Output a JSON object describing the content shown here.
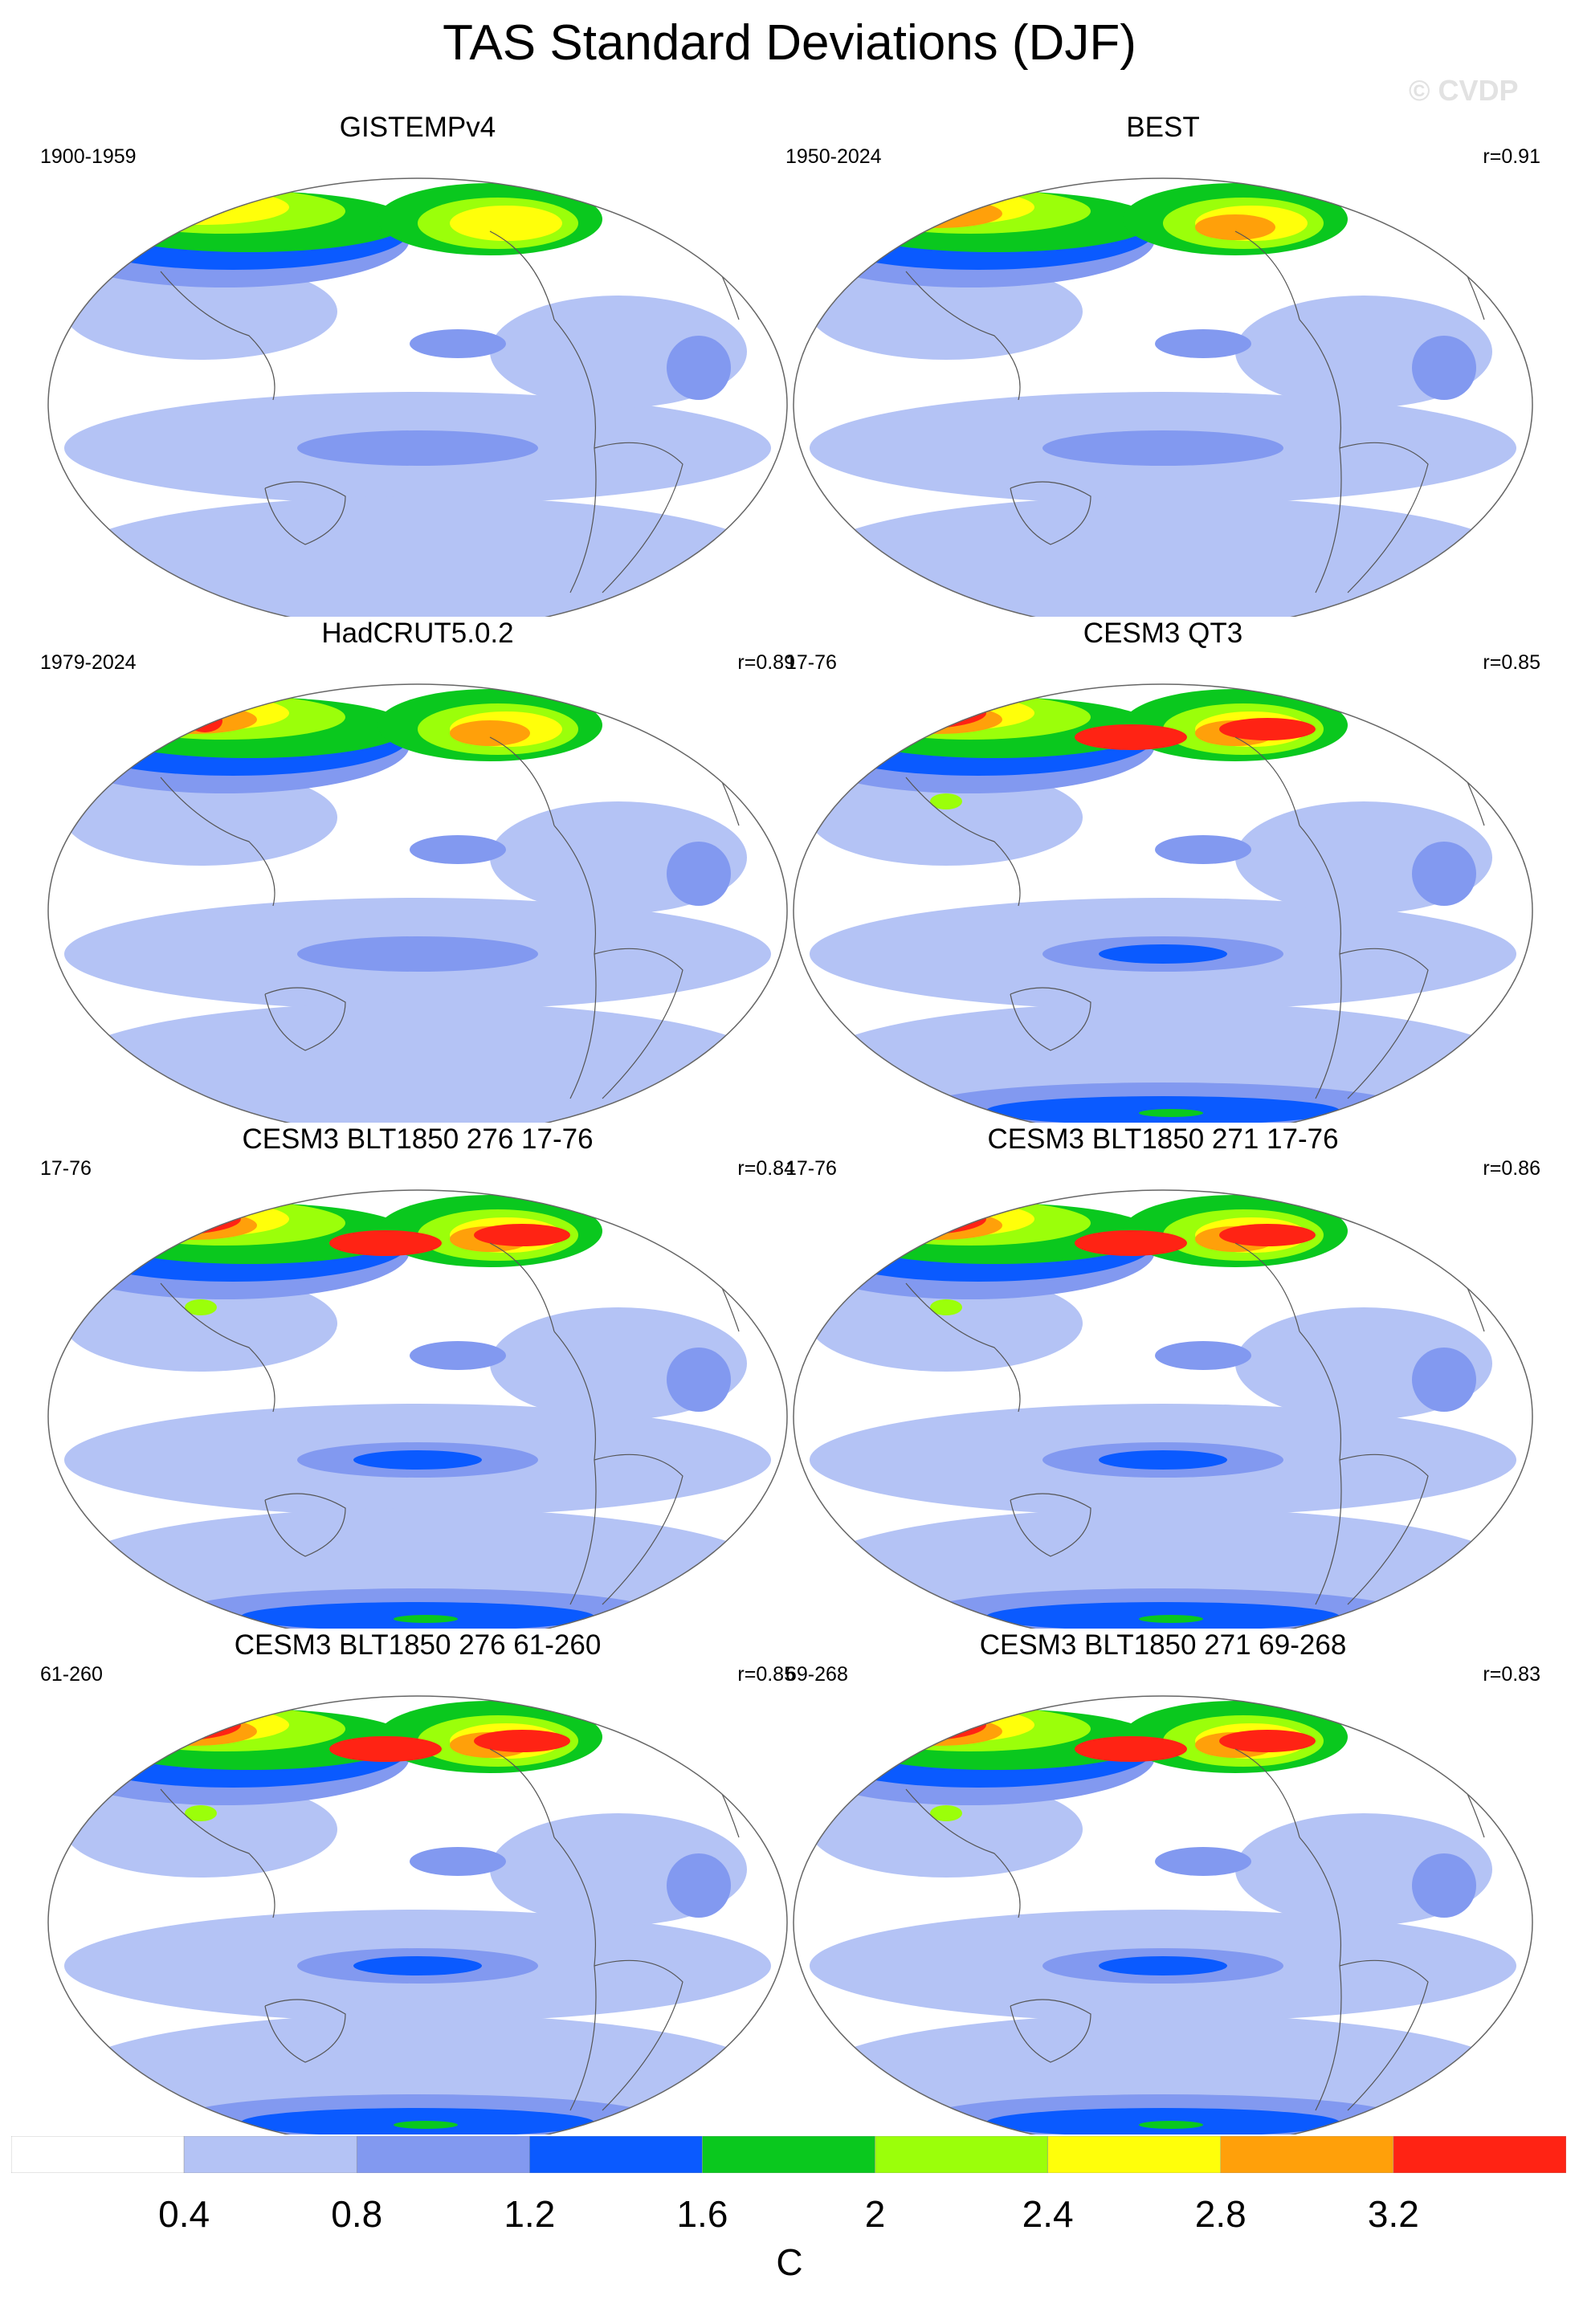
{
  "title": "TAS Standard Deviations (DJF)",
  "watermark": "© CVDP",
  "panels": [
    {
      "title": "GISTEMPv4",
      "period": "1900-1959",
      "corr": "",
      "style": 0
    },
    {
      "title": "BEST",
      "period": "1950-2024",
      "corr": "r=0.91",
      "style": 1
    },
    {
      "title": "HadCRUT5.0.2",
      "period": "1979-2024",
      "corr": "r=0.89",
      "style": 2
    },
    {
      "title": "CESM3 QT3",
      "period": "17-76",
      "corr": "r=0.85",
      "style": 3
    },
    {
      "title": "CESM3 BLT1850 276 17-76",
      "period": "17-76",
      "corr": "r=0.84",
      "style": 3
    },
    {
      "title": "CESM3 BLT1850 271 17-76",
      "period": "17-76",
      "corr": "r=0.86",
      "style": 3
    },
    {
      "title": "CESM3 BLT1850 276 61-260",
      "period": "61-260",
      "corr": "r=0.85",
      "style": 3
    },
    {
      "title": "CESM3 BLT1850 271 69-268",
      "period": "69-268",
      "corr": "r=0.83",
      "style": 3
    }
  ],
  "colorbar": {
    "colors": [
      "#ffffff",
      "#b4c3f5",
      "#8299f0",
      "#0a5aff",
      "#0ac81e",
      "#9bff0a",
      "#ffff0a",
      "#ffa00a",
      "#ff2314"
    ],
    "tick_labels": [
      "0.4",
      "0.8",
      "1.2",
      "1.6",
      "2",
      "2.4",
      "2.8",
      "3.2"
    ],
    "unit": "C"
  }
}
